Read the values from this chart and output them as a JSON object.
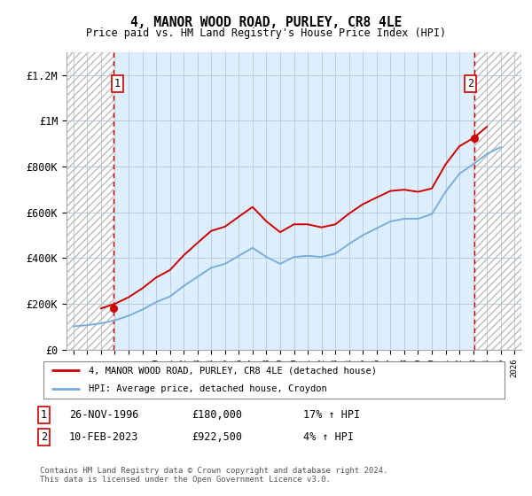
{
  "title": "4, MANOR WOOD ROAD, PURLEY, CR8 4LE",
  "subtitle": "Price paid vs. HM Land Registry's House Price Index (HPI)",
  "ylim": [
    0,
    1300000
  ],
  "xlim_year": [
    1993.5,
    2026.5
  ],
  "yticks": [
    0,
    200000,
    400000,
    600000,
    800000,
    1000000,
    1200000
  ],
  "ytick_labels": [
    "£0",
    "£200K",
    "£400K",
    "£600K",
    "£800K",
    "£1M",
    "£1.2M"
  ],
  "xtick_years": [
    1994,
    1995,
    1996,
    1997,
    1998,
    1999,
    2000,
    2001,
    2002,
    2003,
    2004,
    2005,
    2006,
    2007,
    2008,
    2009,
    2010,
    2011,
    2012,
    2013,
    2014,
    2015,
    2016,
    2017,
    2018,
    2019,
    2020,
    2021,
    2022,
    2023,
    2024,
    2025,
    2026
  ],
  "hpi_years": [
    1994,
    1995,
    1996,
    1997,
    1998,
    1999,
    2000,
    2001,
    2002,
    2003,
    2004,
    2005,
    2006,
    2007,
    2008,
    2009,
    2010,
    2011,
    2012,
    2013,
    2014,
    2015,
    2016,
    2017,
    2018,
    2019,
    2020,
    2021,
    2022,
    2023,
    2024,
    2025
  ],
  "hpi_values": [
    102000,
    107000,
    115000,
    128000,
    148000,
    175000,
    208000,
    232000,
    278000,
    318000,
    358000,
    375000,
    410000,
    445000,
    405000,
    375000,
    405000,
    410000,
    405000,
    420000,
    462000,
    500000,
    530000,
    560000,
    572000,
    572000,
    592000,
    690000,
    768000,
    810000,
    855000,
    885000
  ],
  "price_paid_years": [
    1996.9,
    2023.1
  ],
  "price_paid_values": [
    180000,
    922500
  ],
  "transaction1_date": "26-NOV-1996",
  "transaction1_price": "£180,000",
  "transaction1_hpi": "17% ↑ HPI",
  "transaction2_date": "10-FEB-2023",
  "transaction2_price": "£922,500",
  "transaction2_hpi": "4% ↑ HPI",
  "red_color": "#cc0000",
  "blue_color": "#7aaddb",
  "grid_color": "#bbccdd",
  "plot_bg": "#ddeeff",
  "legend_line1": "4, MANOR WOOD ROAD, PURLEY, CR8 4LE (detached house)",
  "legend_line2": "HPI: Average price, detached house, Croydon",
  "copyright_text": "Contains HM Land Registry data © Crown copyright and database right 2024.\nThis data is licensed under the Open Government Licence v3.0.",
  "hatch_left_end": 1996.9,
  "hatch_right_start": 2023.1
}
